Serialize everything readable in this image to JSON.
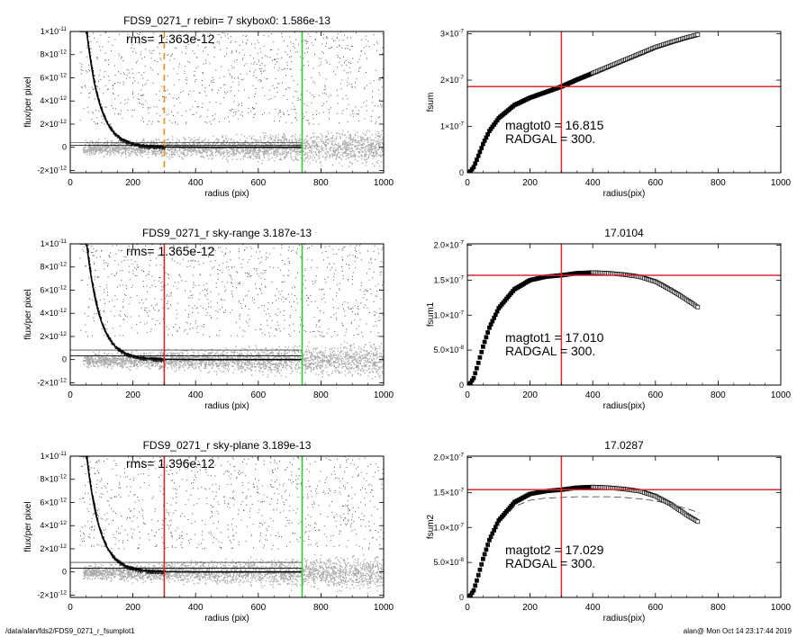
{
  "footer": {
    "path": "/data/alan/fds2/FDS9_0271_r_fsumplot1",
    "stamp": "alan@  Mon Oct 14 23:17:44 2019"
  },
  "colors": {
    "red": "#e0292f",
    "green": "#2ecc2e",
    "orange": "#f0901e",
    "scatter_gray": "#a8a8a8",
    "scatter_dark": "#222222",
    "axis": "#000000"
  },
  "chart_data": [
    {
      "type": "scatter",
      "title": "FDS9_0271_r rebin= 7    skybox0:  1.586e-13",
      "annotation": "rms= 1.363e-12",
      "xlabel": "radius (pix)",
      "ylabel": "flux/per pixel",
      "xlim": [
        0,
        1000
      ],
      "ylim": [
        -2.2e-12,
        1e-11
      ],
      "xticks": [
        0,
        200,
        400,
        600,
        800,
        1000
      ],
      "xtick_labels": [
        "0",
        "200",
        "400",
        "600",
        "800",
        "1000"
      ],
      "yticks": [
        -2e-12,
        0,
        2e-12,
        4e-12,
        6e-12,
        8e-12,
        1e-11
      ],
      "ytick_labels": [
        [
          "-2×10",
          "-12"
        ],
        [
          "0",
          ""
        ],
        [
          "2×10",
          "-12"
        ],
        [
          "4×10",
          "-12"
        ],
        [
          "6×10",
          "-12"
        ],
        [
          "8×10",
          "-12"
        ],
        [
          "1×10",
          "-11"
        ]
      ],
      "sky_level": 1.586e-13,
      "vlines": [
        {
          "x": 300,
          "color": "orange",
          "dashed": true
        },
        {
          "x": 740,
          "color": "green",
          "dashed": false
        }
      ],
      "profile_scale": 3.5e-11,
      "profile_length": 42,
      "sky_band": [
        -1.2e-12,
        2e-12
      ],
      "seed": 11
    },
    {
      "type": "line",
      "title": "",
      "xlabel": "radius(pix)",
      "ylabel": "fsum",
      "xlim": [
        0,
        1000
      ],
      "ylim": [
        0,
        3.05e-07
      ],
      "xticks": [
        0,
        200,
        400,
        600,
        800,
        1000
      ],
      "xtick_labels": [
        "0",
        "200",
        "400",
        "600",
        "800",
        "1000"
      ],
      "yticks": [
        0,
        1e-07,
        2e-07,
        3e-07
      ],
      "ytick_labels": [
        [
          "0",
          ""
        ],
        [
          "1×10",
          "-7"
        ],
        [
          "2×10",
          "-7"
        ],
        [
          "3×10",
          "-7"
        ]
      ],
      "annotations": [
        "magtot0 =  16.815",
        "RADGAL =    300."
      ],
      "vline_x": 300,
      "hline_y": 1.86e-07,
      "x": [
        0,
        10,
        20,
        30,
        50,
        70,
        100,
        150,
        200,
        250,
        300,
        350,
        400,
        450,
        500,
        550,
        600,
        650,
        700,
        740
      ],
      "y": [
        0,
        3e-09,
        1.2e-08,
        2.8e-08,
        6.2e-08,
        9e-08,
        1.18e-07,
        1.46e-07,
        1.62e-07,
        1.74e-07,
        1.86e-07,
        2.01e-07,
        2.15e-07,
        2.29e-07,
        2.43e-07,
        2.57e-07,
        2.71e-07,
        2.82e-07,
        2.92e-07,
        2.99e-07
      ],
      "dashed_y": []
    },
    {
      "type": "scatter",
      "title": "FDS9_0271_r sky-range  3.187e-13",
      "annotation": "rms= 1.365e-12",
      "xlabel": "radius (pix)",
      "ylabel": "flux/per pixel",
      "xlim": [
        0,
        1000
      ],
      "ylim": [
        -2.2e-12,
        1e-11
      ],
      "xticks": [
        0,
        200,
        400,
        600,
        800,
        1000
      ],
      "xtick_labels": [
        "0",
        "200",
        "400",
        "600",
        "800",
        "1000"
      ],
      "yticks": [
        -2e-12,
        0,
        2e-12,
        4e-12,
        6e-12,
        8e-12,
        1e-11
      ],
      "ytick_labels": [
        [
          "-2×10",
          "-12"
        ],
        [
          "0",
          ""
        ],
        [
          "2×10",
          "-12"
        ],
        [
          "4×10",
          "-12"
        ],
        [
          "6×10",
          "-12"
        ],
        [
          "8×10",
          "-12"
        ],
        [
          "1×10",
          "-11"
        ]
      ],
      "sky_level": 3.187e-13,
      "vlines": [
        {
          "x": 300,
          "color": "red",
          "dashed": false
        },
        {
          "x": 740,
          "color": "green",
          "dashed": false
        }
      ],
      "profile_scale": 3.5e-11,
      "profile_length": 42,
      "sky_band": [
        -1.2e-12,
        2e-12
      ],
      "seed": 23
    },
    {
      "type": "line",
      "title": "17.0104",
      "xlabel": "radius(pix)",
      "ylabel": "fsum1",
      "xlim": [
        0,
        1000
      ],
      "ylim": [
        0,
        2.02e-07
      ],
      "xticks": [
        0,
        200,
        400,
        600,
        800,
        1000
      ],
      "xtick_labels": [
        "0",
        "200",
        "400",
        "600",
        "800",
        "1000"
      ],
      "yticks": [
        0,
        5e-08,
        1e-07,
        1.5e-07,
        2e-07
      ],
      "ytick_labels": [
        [
          "0",
          ""
        ],
        [
          "5.0×10",
          "-8"
        ],
        [
          "1.0×10",
          "-7"
        ],
        [
          "1.5×10",
          "-7"
        ],
        [
          "2.0×10",
          "-7"
        ]
      ],
      "annotations": [
        "magtot1 =  17.010",
        "RADGAL =    300."
      ],
      "vline_x": 300,
      "hline_y": 1.57e-07,
      "x": [
        0,
        10,
        20,
        30,
        50,
        70,
        100,
        150,
        200,
        250,
        300,
        350,
        400,
        450,
        500,
        550,
        600,
        650,
        700,
        740
      ],
      "y": [
        0,
        3e-09,
        1e-08,
        2.4e-08,
        5.5e-08,
        8.2e-08,
        1.1e-07,
        1.37e-07,
        1.5e-07,
        1.55e-07,
        1.57e-07,
        1.6e-07,
        1.61e-07,
        1.6e-07,
        1.58e-07,
        1.55e-07,
        1.48e-07,
        1.36e-07,
        1.22e-07,
        1.1e-07
      ],
      "dashed_y": []
    },
    {
      "type": "scatter",
      "title": "FDS9_0271_r sky-plane  3.189e-13",
      "annotation": "rms= 1.396e-12",
      "xlabel": "radius (pix)",
      "ylabel": "flux/per pixel",
      "xlim": [
        0,
        1000
      ],
      "ylim": [
        -2.2e-12,
        1e-11
      ],
      "xticks": [
        0,
        200,
        400,
        600,
        800,
        1000
      ],
      "xtick_labels": [
        "0",
        "200",
        "400",
        "600",
        "800",
        "1000"
      ],
      "yticks": [
        -2e-12,
        0,
        2e-12,
        4e-12,
        6e-12,
        8e-12,
        1e-11
      ],
      "ytick_labels": [
        [
          "-2×10",
          "-12"
        ],
        [
          "0",
          ""
        ],
        [
          "2×10",
          "-12"
        ],
        [
          "4×10",
          "-12"
        ],
        [
          "6×10",
          "-12"
        ],
        [
          "8×10",
          "-12"
        ],
        [
          "1×10",
          "-11"
        ]
      ],
      "sky_level": 3.189e-13,
      "vlines": [
        {
          "x": 300,
          "color": "red",
          "dashed": false
        },
        {
          "x": 740,
          "color": "green",
          "dashed": false
        }
      ],
      "profile_scale": 3.5e-11,
      "profile_length": 42,
      "sky_band": [
        -1.2e-12,
        2e-12
      ],
      "seed": 37
    },
    {
      "type": "line",
      "title": "17.0287",
      "xlabel": "radius(pix)",
      "ylabel": "fsum2",
      "xlim": [
        0,
        1000
      ],
      "ylim": [
        0,
        2.02e-07
      ],
      "xticks": [
        0,
        200,
        400,
        600,
        800,
        1000
      ],
      "xtick_labels": [
        "0",
        "200",
        "400",
        "600",
        "800",
        "1000"
      ],
      "yticks": [
        0,
        5e-08,
        1e-07,
        1.5e-07,
        2e-07
      ],
      "ytick_labels": [
        [
          "0",
          ""
        ],
        [
          "5.0×10",
          "-8"
        ],
        [
          "1.0×10",
          "-7"
        ],
        [
          "1.5×10",
          "-7"
        ],
        [
          "2.0×10",
          "-7"
        ]
      ],
      "annotations": [
        "magtot2 =  17.029",
        "RADGAL =    300."
      ],
      "vline_x": 300,
      "hline_y": 1.54e-07,
      "x": [
        0,
        10,
        20,
        30,
        50,
        70,
        100,
        150,
        200,
        250,
        300,
        350,
        400,
        450,
        500,
        550,
        600,
        650,
        700,
        740
      ],
      "y": [
        0,
        3e-09,
        1e-08,
        2.4e-08,
        5.5e-08,
        8.2e-08,
        1.1e-07,
        1.36e-07,
        1.48e-07,
        1.52e-07,
        1.54e-07,
        1.57e-07,
        1.58e-07,
        1.57e-07,
        1.55e-07,
        1.52e-07,
        1.45e-07,
        1.33e-07,
        1.18e-07,
        1.07e-07
      ],
      "dashed_y": [
        0,
        3e-09,
        1e-08,
        2.3e-08,
        5.3e-08,
        7.9e-08,
        1.06e-07,
        1.3e-07,
        1.39e-07,
        1.42e-07,
        1.43e-07,
        1.44e-07,
        1.44e-07,
        1.44e-07,
        1.43e-07,
        1.41e-07,
        1.38e-07,
        1.33e-07,
        1.27e-07,
        1.21e-07
      ]
    }
  ]
}
